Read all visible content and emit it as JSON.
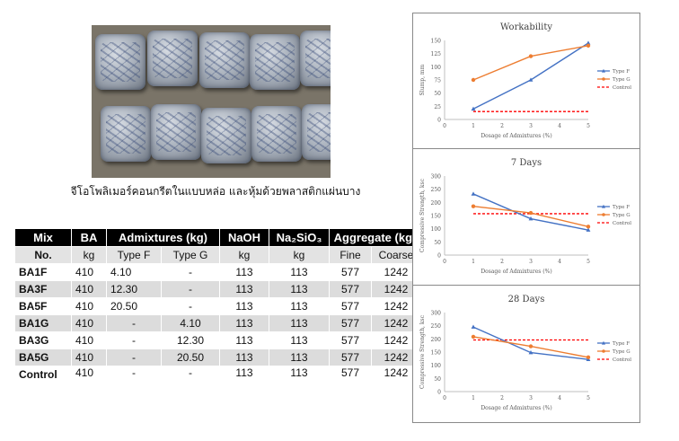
{
  "photo_caption": "จีโอโพลิเมอร์คอนกรีตในแบบหล่อ และหุ้มด้วยพลาสติกแผ่นบาง",
  "table": {
    "header1": [
      "Mix",
      "BA",
      "Admixtures (kg)",
      "NaOH",
      "Na₂SiO₃",
      "Aggregate (kg)"
    ],
    "header2": [
      "No.",
      "kg",
      "Type F",
      "Type G",
      "kg",
      "kg",
      "Fine",
      "Coarse"
    ],
    "rows": [
      [
        "BA1F",
        "410",
        "4.10",
        "-",
        "113",
        "113",
        "577",
        "1242"
      ],
      [
        "BA3F",
        "410",
        "12.30",
        "-",
        "113",
        "113",
        "577",
        "1242"
      ],
      [
        "BA5F",
        "410",
        "20.50",
        "-",
        "113",
        "113",
        "577",
        "1242"
      ],
      [
        "BA1G",
        "410",
        "-",
        "4.10",
        "113",
        "113",
        "577",
        "1242"
      ],
      [
        "BA3G",
        "410",
        "-",
        "12.30",
        "113",
        "113",
        "577",
        "1242"
      ],
      [
        "BA5G",
        "410",
        "-",
        "20.50",
        "113",
        "113",
        "577",
        "1242"
      ],
      [
        "Control",
        "410",
        "-",
        "-",
        "113",
        "113",
        "577",
        "1242"
      ]
    ]
  },
  "colors": {
    "type_f": "#4472c4",
    "type_g": "#ed7d31",
    "control": "#ff0000"
  },
  "chart_data": [
    {
      "type": "line",
      "title": "Workability",
      "xlabel": "Dosage of Admixtures (%)",
      "ylabel": "Slump, mm",
      "xlim": [
        0,
        5
      ],
      "xticks": [
        0,
        1,
        2,
        3,
        4,
        5
      ],
      "ylim": [
        0,
        150
      ],
      "yticks": [
        0,
        25,
        50,
        75,
        100,
        125,
        150
      ],
      "x": [
        1,
        3,
        5
      ],
      "series": [
        {
          "name": "Type F",
          "values": [
            20,
            75,
            145
          ]
        },
        {
          "name": "Type G",
          "values": [
            75,
            120,
            140
          ]
        }
      ],
      "control": {
        "name": "Control",
        "value": 15
      },
      "legend": "right"
    },
    {
      "type": "line",
      "title": "7 Days",
      "xlabel": "Dosage of Admixtures (%)",
      "ylabel": "Compressive Strength, ksc",
      "xlim": [
        0,
        5
      ],
      "xticks": [
        0,
        1,
        2,
        3,
        4,
        5
      ],
      "ylim": [
        0,
        300
      ],
      "yticks": [
        0,
        50,
        100,
        150,
        200,
        250,
        300
      ],
      "x": [
        1,
        3,
        5
      ],
      "series": [
        {
          "name": "Type F",
          "values": [
            232,
            138,
            95
          ]
        },
        {
          "name": "Type G",
          "values": [
            185,
            160,
            108
          ]
        }
      ],
      "control": {
        "name": "Control",
        "value": 157
      },
      "legend": "right"
    },
    {
      "type": "line",
      "title": "28 Days",
      "xlabel": "Dosage of Admixtures (%)",
      "ylabel": "Compressive Strength, ksc",
      "xlim": [
        0,
        5
      ],
      "xticks": [
        0,
        1,
        2,
        3,
        4,
        5
      ],
      "ylim": [
        0,
        300
      ],
      "yticks": [
        0,
        50,
        100,
        150,
        200,
        250,
        300
      ],
      "x": [
        1,
        3,
        5
      ],
      "series": [
        {
          "name": "Type F",
          "values": [
            245,
            148,
            122
          ]
        },
        {
          "name": "Type G",
          "values": [
            208,
            172,
            130
          ]
        }
      ],
      "control": {
        "name": "Control",
        "value": 196
      },
      "legend": "right"
    }
  ]
}
